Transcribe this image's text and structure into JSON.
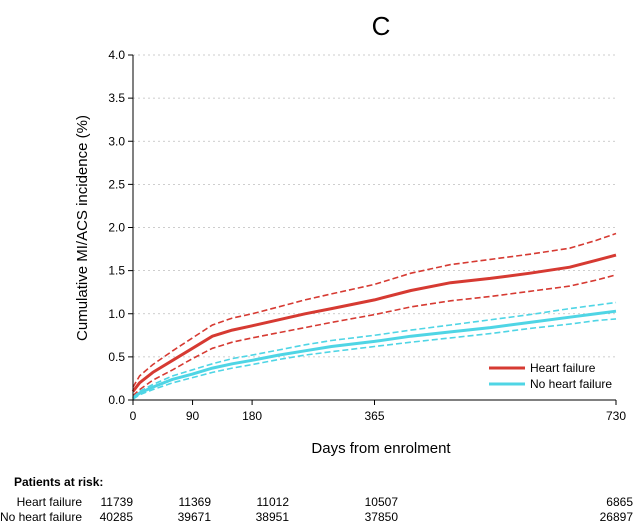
{
  "chart_data": {
    "type": "line",
    "title": "C",
    "xlabel": "Days from enrolment",
    "ylabel": "Cumulative MI/ACS incidence (%)",
    "xlim": [
      0,
      730
    ],
    "ylim": [
      0,
      4.0
    ],
    "xticks": [
      0,
      90,
      180,
      365,
      730
    ],
    "yticks": [
      "0.0",
      "0.5",
      "1.0",
      "1.5",
      "2.0",
      "2.5",
      "3.0",
      "3.5",
      "4.0"
    ],
    "legend_position": "bottom-right",
    "series": [
      {
        "name": "Heart failure",
        "color": "#d63a32",
        "x": [
          0,
          10,
          30,
          60,
          90,
          120,
          150,
          180,
          220,
          260,
          300,
          365,
          420,
          480,
          540,
          600,
          660,
          700,
          730
        ],
        "values": [
          0.1,
          0.2,
          0.32,
          0.46,
          0.6,
          0.74,
          0.81,
          0.86,
          0.93,
          1.0,
          1.06,
          1.16,
          1.27,
          1.36,
          1.41,
          1.47,
          1.54,
          1.62,
          1.68
        ],
        "ci_lower": [
          0.05,
          0.12,
          0.23,
          0.35,
          0.48,
          0.6,
          0.67,
          0.72,
          0.78,
          0.84,
          0.9,
          0.99,
          1.08,
          1.15,
          1.2,
          1.26,
          1.32,
          1.39,
          1.45
        ],
        "ci_upper": [
          0.15,
          0.28,
          0.41,
          0.57,
          0.72,
          0.87,
          0.95,
          1.0,
          1.08,
          1.16,
          1.23,
          1.34,
          1.47,
          1.57,
          1.63,
          1.69,
          1.76,
          1.85,
          1.93
        ]
      },
      {
        "name": "No heart failure",
        "color": "#4fd5e5",
        "x": [
          0,
          10,
          30,
          60,
          90,
          120,
          150,
          180,
          220,
          260,
          300,
          365,
          420,
          480,
          540,
          600,
          660,
          700,
          730
        ],
        "values": [
          0.02,
          0.08,
          0.15,
          0.24,
          0.3,
          0.37,
          0.42,
          0.46,
          0.52,
          0.57,
          0.62,
          0.68,
          0.74,
          0.79,
          0.84,
          0.9,
          0.96,
          1.0,
          1.03
        ],
        "ci_lower": [
          0.01,
          0.06,
          0.12,
          0.2,
          0.26,
          0.32,
          0.37,
          0.41,
          0.47,
          0.52,
          0.56,
          0.62,
          0.67,
          0.72,
          0.77,
          0.83,
          0.88,
          0.92,
          0.94
        ],
        "ci_upper": [
          0.03,
          0.1,
          0.18,
          0.28,
          0.35,
          0.42,
          0.48,
          0.52,
          0.58,
          0.64,
          0.69,
          0.75,
          0.81,
          0.87,
          0.93,
          0.99,
          1.06,
          1.1,
          1.13
        ]
      }
    ]
  },
  "risk_table": {
    "heading": "Patients at risk:",
    "columns_days": [
      0,
      90,
      180,
      365,
      730
    ],
    "rows": [
      {
        "label": "Heart failure",
        "values": [
          "11739",
          "11369",
          "11012",
          "10507",
          "6865"
        ]
      },
      {
        "label": "No heart failure",
        "values": [
          "40285",
          "39671",
          "38951",
          "37850",
          "26897"
        ]
      }
    ]
  }
}
